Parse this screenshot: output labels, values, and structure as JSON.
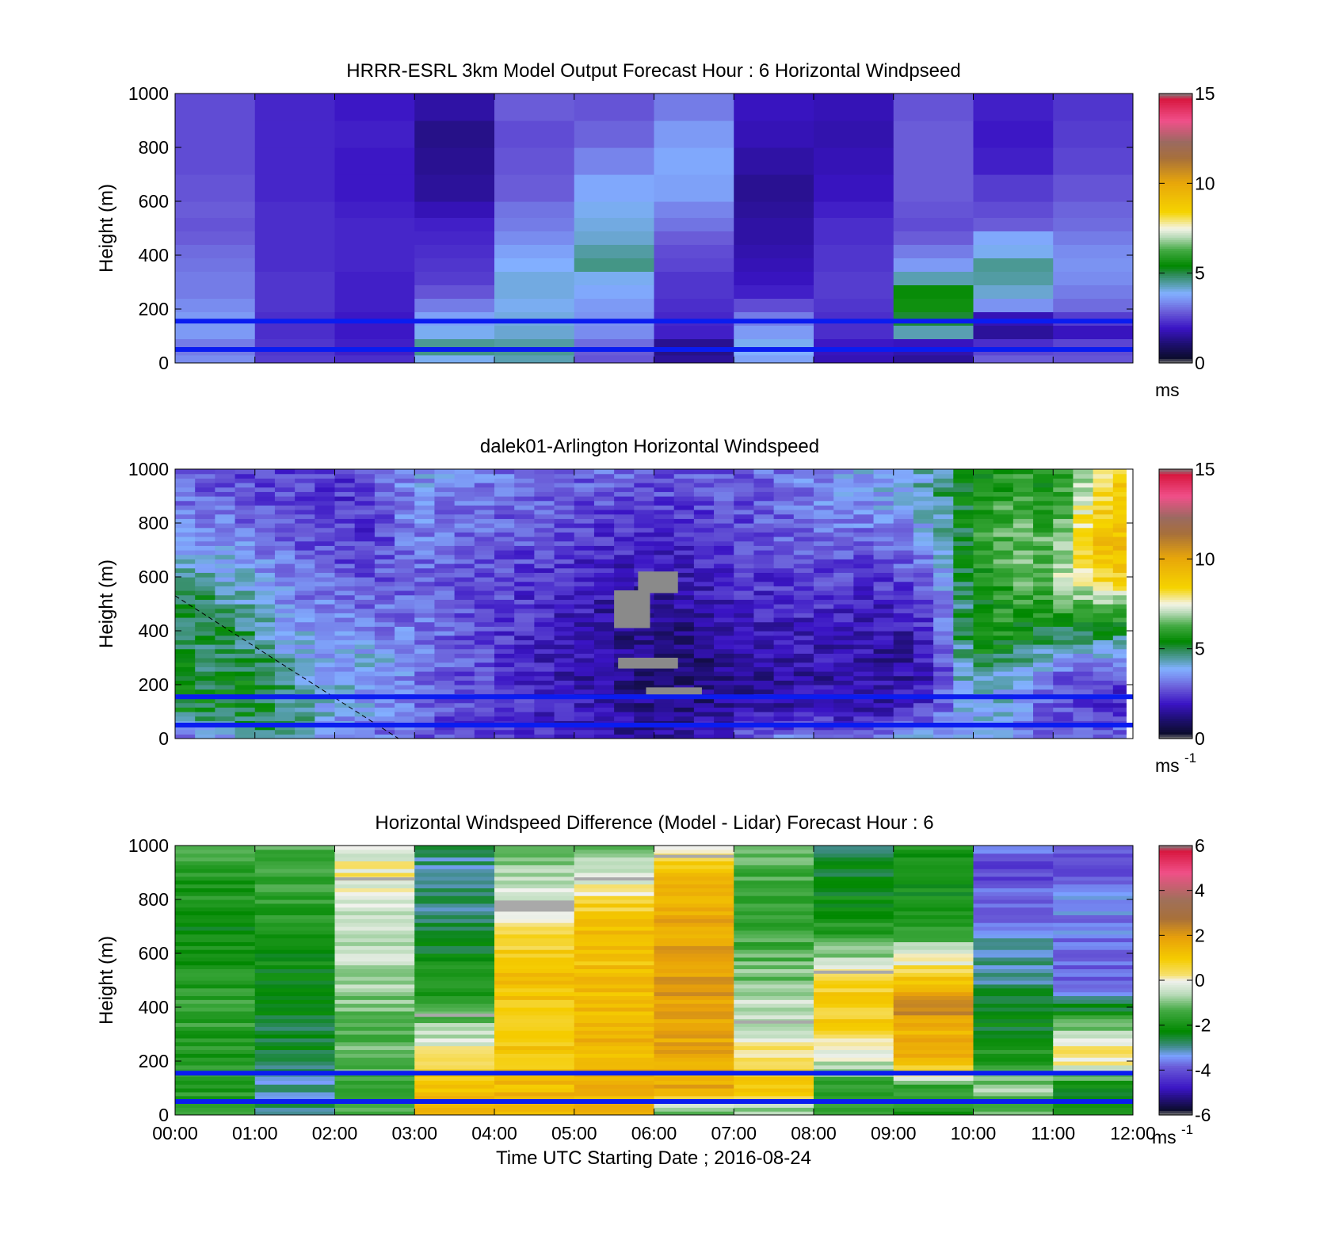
{
  "chart_data": [
    {
      "type": "heatmap",
      "title": "HRRR-ESRL 3km Model Output   Forecast Hour : 6 Horizontal Windpseed",
      "ylabel": "Height (m)",
      "xlabel": "",
      "ylim": [
        0,
        1000
      ],
      "yticks": [
        "0",
        "200",
        "400",
        "600",
        "800",
        "1000"
      ],
      "xlim_hours": [
        0,
        12
      ],
      "colorbar": {
        "min": 0,
        "max": 15,
        "ticks": [
          "0",
          "5",
          "10",
          "15"
        ],
        "unit": "ms",
        "unit_sup": "",
        "palette": "speed"
      },
      "reference_lines_m": [
        50,
        155
      ],
      "columns": 12,
      "row_heights": [
        30,
        60,
        90,
        140,
        190,
        240,
        290,
        340,
        390,
        440,
        490,
        540,
        600,
        700,
        800,
        900,
        1000
      ],
      "values": [
        [
          3.2,
          2.2,
          2.0,
          3.8,
          4.2,
          2.5,
          1.2,
          3.5,
          1.5,
          1.2,
          2.6,
          2.5
        ],
        [
          3.0,
          2.1,
          1.8,
          4.5,
          4.4,
          2.6,
          1.0,
          3.7,
          1.6,
          1.4,
          2.3,
          2.4
        ],
        [
          3.0,
          2.1,
          1.8,
          4.4,
          4.3,
          2.8,
          1.1,
          3.8,
          1.7,
          1.6,
          2.0,
          2.3
        ],
        [
          3.4,
          2.0,
          1.7,
          3.8,
          4.0,
          3.2,
          1.8,
          3.4,
          2.0,
          4.2,
          1.2,
          1.6
        ],
        [
          3.4,
          2.0,
          1.7,
          3.5,
          3.9,
          3.3,
          1.9,
          3.0,
          2.0,
          5.0,
          1.5,
          2.2
        ],
        [
          3.2,
          2.1,
          1.8,
          3.0,
          3.8,
          3.4,
          2.0,
          2.4,
          2.1,
          5.5,
          3.3,
          2.8
        ],
        [
          3.0,
          2.1,
          1.8,
          2.5,
          3.9,
          3.6,
          2.1,
          1.8,
          2.2,
          5.4,
          4.0,
          3.0
        ],
        [
          3.0,
          2.1,
          1.8,
          2.2,
          3.9,
          3.8,
          2.1,
          1.6,
          2.2,
          4.2,
          4.3,
          3.2
        ],
        [
          2.9,
          2.0,
          1.9,
          2.1,
          3.7,
          4.5,
          2.3,
          1.5,
          2.1,
          3.4,
          4.4,
          3.3
        ],
        [
          2.8,
          2.0,
          1.9,
          2.0,
          3.5,
          4.3,
          2.4,
          1.4,
          2.1,
          3.0,
          3.8,
          3.2
        ],
        [
          2.6,
          2.0,
          1.9,
          1.9,
          3.2,
          4.0,
          2.6,
          1.3,
          2.0,
          2.6,
          3.6,
          3.0
        ],
        [
          2.5,
          2.0,
          1.9,
          1.8,
          3.0,
          3.9,
          2.9,
          1.3,
          2.0,
          2.4,
          2.6,
          2.8
        ],
        [
          2.6,
          2.0,
          1.8,
          1.5,
          2.9,
          3.8,
          3.1,
          1.2,
          1.8,
          2.5,
          2.4,
          2.7
        ],
        [
          2.5,
          1.9,
          1.7,
          1.2,
          2.6,
          3.6,
          3.5,
          1.1,
          1.6,
          2.6,
          2.2,
          2.5
        ],
        [
          2.4,
          1.9,
          1.7,
          1.1,
          2.5,
          3.1,
          3.6,
          1.3,
          1.5,
          2.6,
          1.8,
          2.3
        ],
        [
          2.4,
          1.9,
          1.8,
          1.0,
          2.4,
          2.7,
          3.4,
          1.5,
          1.4,
          2.6,
          1.7,
          2.2
        ],
        [
          2.4,
          1.9,
          1.7,
          1.3,
          2.6,
          2.5,
          3.0,
          1.6,
          1.5,
          2.5,
          1.8,
          2.1
        ]
      ]
    },
    {
      "type": "heatmap",
      "title": "dalek01-Arlington  Horizontal Windspeed",
      "ylabel": "Height (m)",
      "xlabel": "",
      "ylim": [
        0,
        1000
      ],
      "yticks": [
        "0",
        "200",
        "400",
        "600",
        "800",
        "1000"
      ],
      "xlim_hours": [
        0,
        12
      ],
      "colorbar": {
        "min": 0,
        "max": 15,
        "ticks": [
          "0",
          "5",
          "10",
          "15"
        ],
        "unit": "ms",
        "unit_sup": "-1",
        "palette": "speed"
      },
      "reference_lines_m": [
        50,
        155
      ],
      "profile_times_hours": [
        0,
        0.5,
        1,
        1.5,
        2,
        2.5,
        3,
        3.5,
        4,
        4.5,
        5,
        5.5,
        6,
        6.5,
        7,
        7.5,
        8,
        8.5,
        9,
        9.5,
        10,
        10.5,
        11,
        11.5,
        12
      ],
      "profile_heights_m": [
        0,
        100,
        200,
        300,
        400,
        500,
        600,
        700,
        800,
        900,
        1000
      ],
      "profiles": [
        [
          3.0,
          5.0,
          5.5,
          5.0,
          4.5,
          4.8,
          4.5,
          3.6,
          3.5,
          3.0,
          3.0
        ],
        [
          3.2,
          5.0,
          5.0,
          4.5,
          5.0,
          4.6,
          4.2,
          3.5,
          3.2,
          2.6,
          2.4
        ],
        [
          4.5,
          5.2,
          5.2,
          4.8,
          4.5,
          4.0,
          3.6,
          3.2,
          2.8,
          2.4,
          2.3
        ],
        [
          4.0,
          4.6,
          4.2,
          3.8,
          3.6,
          3.2,
          3.0,
          2.6,
          2.5,
          2.4,
          2.3
        ],
        [
          3.4,
          3.6,
          3.8,
          3.5,
          3.6,
          3.0,
          2.6,
          2.3,
          2.1,
          2.1,
          2.0
        ],
        [
          3.0,
          3.4,
          3.6,
          3.8,
          3.2,
          2.7,
          2.4,
          2.2,
          2.1,
          2.2,
          2.6
        ],
        [
          2.5,
          2.8,
          3.0,
          3.2,
          3.0,
          2.8,
          2.8,
          3.0,
          3.2,
          3.4,
          3.6
        ],
        [
          2.2,
          2.4,
          2.5,
          2.6,
          2.6,
          2.6,
          2.5,
          2.6,
          2.8,
          3.0,
          3.2
        ],
        [
          2.0,
          2.1,
          2.2,
          2.2,
          2.2,
          2.3,
          2.4,
          2.5,
          2.7,
          2.9,
          3.0
        ],
        [
          1.9,
          1.9,
          1.8,
          1.8,
          1.9,
          2.0,
          2.1,
          2.3,
          2.5,
          2.7,
          2.9
        ],
        [
          1.6,
          1.6,
          1.5,
          1.5,
          1.6,
          1.7,
          1.9,
          2.1,
          2.3,
          2.5,
          2.8
        ],
        [
          1.4,
          1.3,
          1.2,
          1.1,
          1.2,
          1.4,
          1.7,
          1.9,
          2.2,
          2.5,
          2.7
        ],
        [
          1.2,
          1.0,
          0.8,
          0.7,
          0.8,
          1.0,
          1.4,
          1.7,
          2.0,
          2.3,
          2.5
        ],
        [
          1.4,
          1.0,
          0.8,
          0.8,
          1.0,
          1.3,
          1.6,
          1.9,
          2.1,
          2.3,
          2.5
        ],
        [
          2.5,
          1.3,
          1.0,
          1.2,
          1.5,
          1.8,
          2.0,
          2.2,
          2.3,
          2.5,
          2.6
        ],
        [
          3.0,
          1.5,
          1.3,
          1.4,
          1.6,
          1.9,
          2.2,
          2.4,
          2.6,
          2.8,
          2.9
        ],
        [
          3.2,
          1.6,
          1.4,
          1.5,
          1.7,
          2.0,
          2.3,
          2.6,
          2.9,
          3.1,
          3.2
        ],
        [
          3.0,
          1.5,
          1.3,
          1.4,
          1.6,
          1.9,
          2.2,
          2.6,
          3.0,
          3.3,
          3.4
        ],
        [
          3.4,
          1.5,
          1.3,
          1.2,
          1.4,
          1.8,
          2.2,
          2.7,
          3.2,
          3.6,
          3.8
        ],
        [
          3.6,
          2.4,
          1.8,
          1.7,
          2.0,
          2.5,
          3.0,
          3.4,
          3.9,
          4.2,
          4.3
        ],
        [
          3.5,
          4.0,
          4.5,
          5.2,
          5.6,
          5.4,
          5.2,
          5.5,
          5.6,
          5.5,
          5.4
        ],
        [
          3.2,
          3.8,
          3.4,
          4.8,
          5.6,
          5.8,
          6.2,
          6.6,
          6.4,
          6.0,
          5.8
        ],
        [
          2.8,
          2.4,
          2.5,
          3.6,
          5.0,
          6.0,
          6.6,
          6.4,
          5.8,
          5.6,
          5.6
        ],
        [
          2.6,
          2.2,
          2.0,
          3.4,
          5.0,
          6.4,
          8.4,
          9.2,
          8.8,
          8.0,
          7.5
        ],
        [
          3.0,
          2.2,
          2.0,
          3.5,
          5.0,
          6.8,
          8.6,
          9.4,
          9.0,
          9.2,
          9.0
        ]
      ],
      "missing_data_regions": [
        {
          "t_hours": [
            5.5,
            5.95
          ],
          "h_m": [
            410,
            550
          ]
        },
        {
          "t_hours": [
            5.8,
            6.3
          ],
          "h_m": [
            540,
            620
          ]
        },
        {
          "t_hours": [
            5.55,
            6.3
          ],
          "h_m": [
            260,
            300
          ]
        },
        {
          "t_hours": [
            5.9,
            6.6
          ],
          "h_m": [
            150,
            190
          ]
        }
      ],
      "dashed_line_points": [
        [
          0,
          530
        ],
        [
          2.8,
          0
        ]
      ]
    },
    {
      "type": "heatmap",
      "title": "Horizontal Windspeed Difference (Model - Lidar) Forecast Hour : 6",
      "ylabel": "Height (m)",
      "xlabel": "Time UTC  Starting Date ; 2016-08-24",
      "ylim": [
        0,
        1000
      ],
      "yticks": [
        "0",
        "200",
        "400",
        "600",
        "800",
        "1000"
      ],
      "xticks": [
        "00:00",
        "01:00",
        "02:00",
        "03:00",
        "04:00",
        "05:00",
        "06:00",
        "07:00",
        "08:00",
        "09:00",
        "10:00",
        "11:00",
        "12:00"
      ],
      "xlim_hours": [
        0,
        12
      ],
      "colorbar": {
        "min": -6,
        "max": 6,
        "ticks": [
          "-6",
          "-4",
          "-2",
          "0",
          "2",
          "4",
          "6"
        ],
        "unit": "ms",
        "unit_sup": "-1",
        "palette": "difference"
      },
      "reference_lines_m": [
        50,
        155
      ],
      "columns": 12,
      "profile_heights_m": [
        0,
        100,
        200,
        300,
        400,
        500,
        600,
        700,
        800,
        900,
        1000
      ],
      "profiles": [
        [
          -1.5,
          -1.8,
          -2.0,
          -1.8,
          -1.6,
          -2.0,
          -2.2,
          -2.2,
          -2.0,
          -1.8,
          -1.5
        ],
        [
          -3.0,
          -3.2,
          -2.8,
          -2.6,
          -2.6,
          -2.4,
          -2.2,
          -2.0,
          -1.6,
          -1.5,
          -1.4
        ],
        [
          -1.5,
          -1.4,
          -1.4,
          -1.2,
          -1.0,
          -0.8,
          -0.6,
          -0.5,
          -0.3,
          0.2,
          -0.4
        ],
        [
          1.5,
          1.2,
          0.5,
          -0.6,
          -1.5,
          -2.0,
          -2.4,
          -2.8,
          -3.0,
          -3.2,
          -3.0
        ],
        [
          1.6,
          1.4,
          1.2,
          1.1,
          1.0,
          1.2,
          0.8,
          0.4,
          -0.3,
          -0.7,
          -1.0
        ],
        [
          1.8,
          1.6,
          1.5,
          1.6,
          1.4,
          1.3,
          1.2,
          1.2,
          0.6,
          -0.5,
          -1.2
        ],
        [
          -1.6,
          1.8,
          1.8,
          1.9,
          2.0,
          2.1,
          2.0,
          1.8,
          1.6,
          1.4,
          -0.5
        ],
        [
          -1.2,
          1.2,
          0.6,
          -0.3,
          -0.5,
          -1.0,
          -1.4,
          -1.6,
          -1.8,
          -1.4,
          -1.0
        ],
        [
          -1.8,
          -2.0,
          -0.4,
          0.6,
          1.0,
          0.8,
          -1.0,
          -2.0,
          -2.2,
          -2.6,
          -3.0
        ],
        [
          -2.0,
          -1.8,
          1.8,
          1.6,
          2.4,
          1.2,
          -0.4,
          -2.0,
          -2.2,
          -2.2,
          -2.0
        ],
        [
          -1.5,
          -0.8,
          -1.8,
          -2.4,
          -2.6,
          -3.0,
          -3.4,
          -3.6,
          -4.0,
          -4.4,
          -4.0
        ],
        [
          -2.2,
          -2.6,
          0.4,
          -0.4,
          -2.6,
          -4.0,
          -4.0,
          -3.8,
          -3.6,
          -4.4,
          -4.2
        ]
      ],
      "missing_data_lines": [
        {
          "col": 2,
          "h_m": 876
        },
        {
          "col": 3,
          "h_m": 370
        },
        {
          "col": 4,
          "h_m": 790
        },
        {
          "col": 5,
          "h_m": 876
        },
        {
          "col": 6,
          "h_m": 960
        },
        {
          "col": 7,
          "h_m": 345
        },
        {
          "col": 8,
          "h_m": 530
        }
      ]
    }
  ]
}
